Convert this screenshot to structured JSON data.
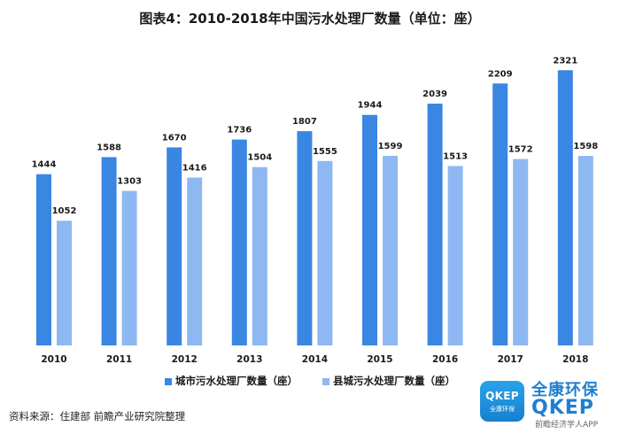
{
  "chart_data": {
    "type": "bar",
    "title": "图表4：2010-2018年中国污水处理厂数量（单位：座）",
    "categories": [
      "2010",
      "2011",
      "2012",
      "2013",
      "2014",
      "2015",
      "2016",
      "2017",
      "2018"
    ],
    "series": [
      {
        "name": "城市污水处理厂数量（座）",
        "color": "#3a86e3",
        "values": [
          1444,
          1588,
          1670,
          1736,
          1807,
          1944,
          2039,
          2209,
          2321
        ]
      },
      {
        "name": "县城污水处理厂数量（座）",
        "color": "#8db8f2",
        "values": [
          1052,
          1303,
          1416,
          1504,
          1555,
          1599,
          1513,
          1572,
          1598
        ]
      }
    ],
    "ylim": [
      0,
      2450
    ],
    "grid": false,
    "legend": "bottom"
  },
  "source_text": "资料来源：住建部 前瞻产业研究院整理",
  "brand": {
    "badge_top": "QKEP",
    "badge_bottom": "全康环保",
    "name_cn": "全康环保",
    "name_en": "QKEP",
    "sub": "前瞻经济学人APP"
  }
}
